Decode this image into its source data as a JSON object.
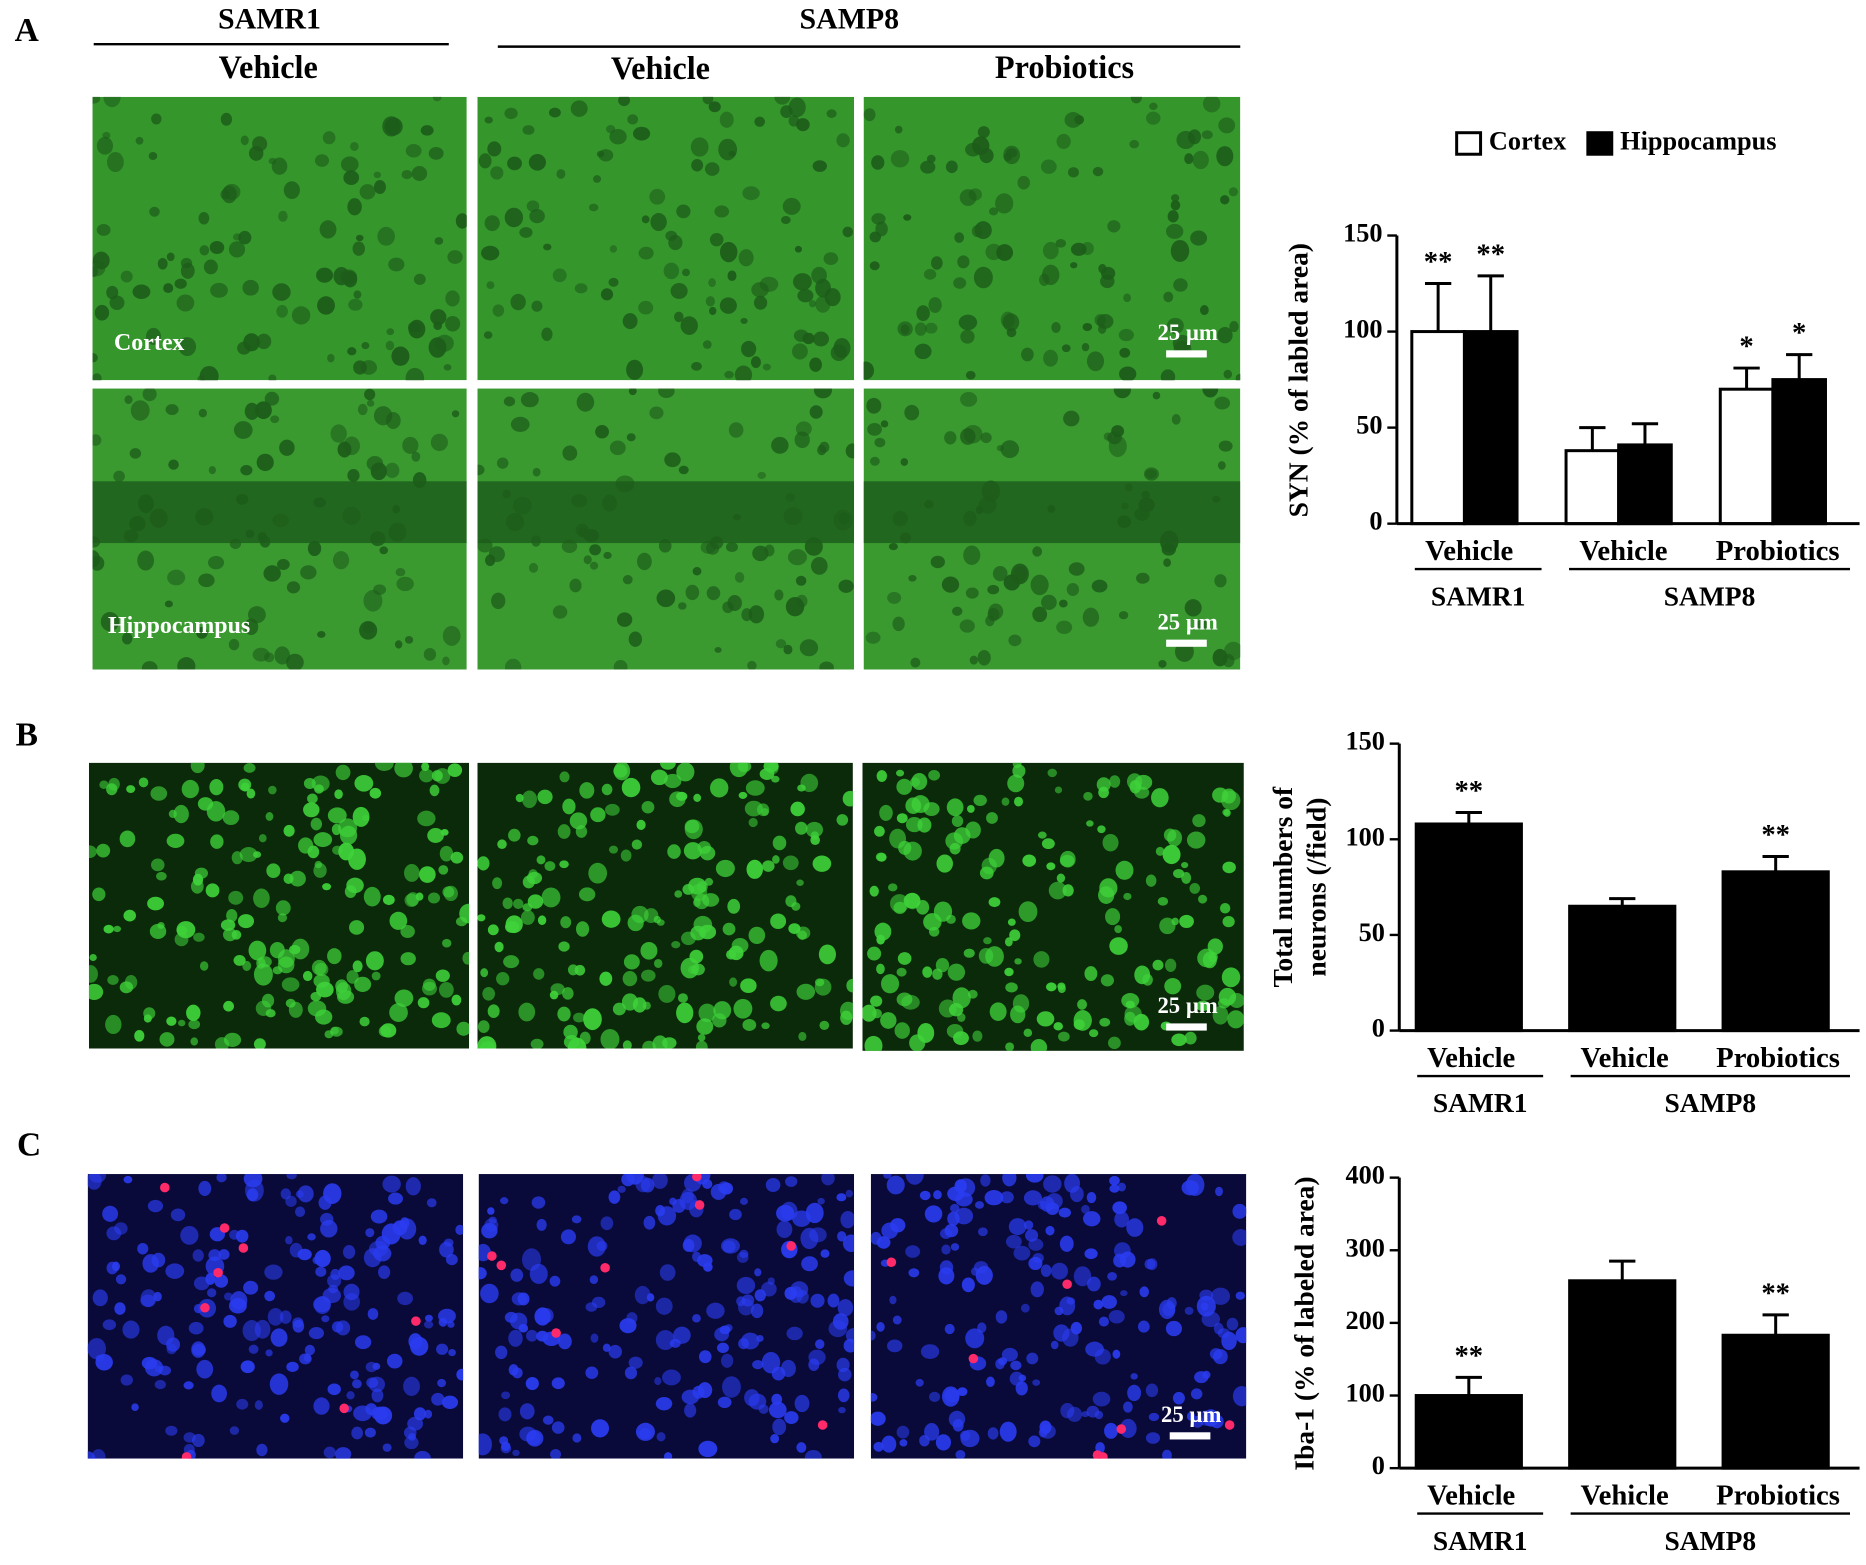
{
  "figure": {
    "panels": [
      "A",
      "B",
      "C"
    ],
    "groups": [
      "SAMR1",
      "SAMP8"
    ],
    "treatments": [
      "Vehicle",
      "Vehicle",
      "Probiotics"
    ],
    "row_labels": [
      "Cortex",
      "Hippocampus"
    ],
    "scale_bars": [
      "25 µm",
      "25 µm",
      "25 µm",
      "25 µm"
    ]
  },
  "chart_data": [
    {
      "type": "bar",
      "ylabel": [
        "SYN (% of labled area)"
      ],
      "groups": [
        {
          "name": "SAMR1",
          "categories": [
            "Vehicle"
          ]
        },
        {
          "name": "SAMP8",
          "categories": [
            "Vehicle",
            "Probiotics"
          ]
        }
      ],
      "series": [
        {
          "name": "Cortex",
          "color": "#ffffff",
          "values": [
            100,
            38,
            70
          ],
          "errors": [
            25,
            12,
            11
          ],
          "annotations": [
            "**",
            null,
            "*"
          ]
        },
        {
          "name": "Hippocampus",
          "color": "#000000",
          "values": [
            100,
            41,
            75
          ],
          "errors": [
            29,
            11,
            13
          ],
          "annotations": [
            "**",
            null,
            "*"
          ]
        }
      ],
      "legend": true,
      "ylim": [
        0,
        150
      ],
      "yticks": [
        0,
        50,
        100,
        150
      ]
    },
    {
      "type": "bar",
      "ylabel": [
        "Total numbers of",
        "neurons (/field)"
      ],
      "groups": [
        {
          "name": "SAMR1",
          "categories": [
            "Vehicle"
          ]
        },
        {
          "name": "SAMP8",
          "categories": [
            "Vehicle",
            "Probiotics"
          ]
        }
      ],
      "series": [
        {
          "color": "#000000",
          "values": [
            108,
            65,
            83
          ],
          "errors": [
            6,
            4,
            8
          ],
          "annotations": [
            "**",
            null,
            "**"
          ]
        }
      ],
      "legend": false,
      "ylim": [
        0,
        150
      ],
      "yticks": [
        0,
        50,
        100,
        150
      ]
    },
    {
      "type": "bar",
      "ylabel": [
        "Iba-1 (% of labeled area)"
      ],
      "groups": [
        {
          "name": "SAMR1",
          "categories": [
            "Vehicle"
          ]
        },
        {
          "name": "SAMP8",
          "categories": [
            "Vehicle",
            "Probiotics"
          ]
        }
      ],
      "series": [
        {
          "color": "#000000",
          "values": [
            100,
            258,
            183
          ],
          "errors": [
            25,
            27,
            28
          ],
          "annotations": [
            "**",
            null,
            "**"
          ]
        }
      ],
      "legend": false,
      "ylim": [
        0,
        400
      ],
      "yticks": [
        0,
        100,
        200,
        300,
        400
      ]
    }
  ]
}
